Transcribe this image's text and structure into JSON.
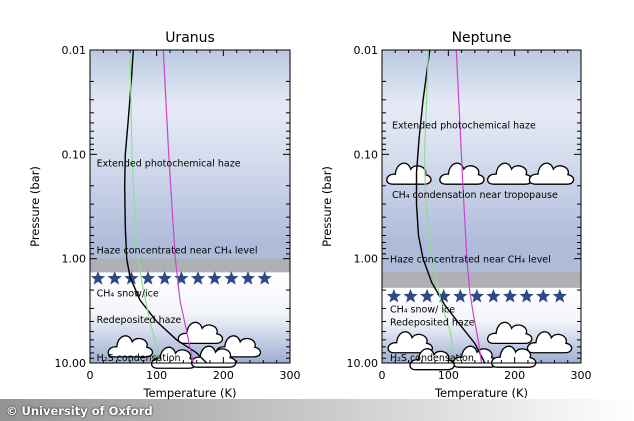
{
  "credit": "© University of Oxford",
  "chart_data": [
    {
      "type": "line",
      "title": "Uranus",
      "xlabel": "Temperature (K)",
      "ylabel": "Pressure (bar)",
      "xlim": [
        0,
        300
      ],
      "ylim": [
        0.01,
        10.0
      ],
      "y_scale": "log",
      "y_inverted": true,
      "xticks": [
        "0",
        "100",
        "200",
        "300"
      ],
      "yticks": [
        "0.01",
        "0.10",
        "1.00",
        "10.00"
      ],
      "series": [
        {
          "color": "#000000",
          "points": [
            [
              65,
              0.01
            ],
            [
              62,
              0.02
            ],
            [
              57,
              0.05
            ],
            [
              53,
              0.1
            ],
            [
              52,
              0.2
            ],
            [
              53,
              0.5
            ],
            [
              55,
              1.0
            ],
            [
              60,
              1.5
            ],
            [
              75,
              2.5
            ],
            [
              100,
              4
            ],
            [
              130,
              6
            ],
            [
              160,
              8
            ],
            [
              175,
              10
            ]
          ]
        },
        {
          "color": "#8ee08e",
          "points": [
            [
              60,
              0.01
            ],
            [
              63,
              0.1
            ],
            [
              68,
              0.5
            ],
            [
              72,
              1.0
            ],
            [
              80,
              2.0
            ],
            [
              90,
              4
            ],
            [
              100,
              7
            ],
            [
              105,
              10
            ]
          ]
        },
        {
          "color": "#cc44cc",
          "points": [
            [
              110,
              0.01
            ],
            [
              118,
              0.1
            ],
            [
              125,
              0.5
            ],
            [
              128,
              1.0
            ],
            [
              135,
              2.5
            ],
            [
              145,
              5
            ],
            [
              155,
              10
            ]
          ]
        }
      ],
      "annotations": [
        {
          "text": "Extended photochemical haze",
          "pressure": 0.12,
          "x": 10
        },
        {
          "text": "Haze concentrated near CH₄ level",
          "pressure": 0.82,
          "x": 10
        },
        {
          "text": "CH₄ snow/ice",
          "pressure": 2.1,
          "x": 10
        },
        {
          "text": "Redeposited haze",
          "pressure": 3.8,
          "x": 10
        },
        {
          "text": "H₂S condensation",
          "pressure": 8.8,
          "x": 10
        }
      ],
      "bands": {
        "haze_band": [
          1.0,
          1.35
        ],
        "snow_pressure": 1.55
      },
      "snow_x": [
        12,
        37,
        62,
        87,
        112,
        137,
        162,
        187,
        212,
        237,
        262
      ],
      "clouds": [
        {
          "x": 60,
          "p": 7.0
        },
        {
          "x": 165,
          "p": 5.2
        },
        {
          "x": 222,
          "p": 7.0
        },
        {
          "x": 125,
          "p": 9.0
        },
        {
          "x": 185,
          "p": 8.8
        }
      ]
    },
    {
      "type": "line",
      "title": "Neptune",
      "xlabel": "Temperature (K)",
      "ylabel": "Pressure (bar)",
      "xlim": [
        0,
        300
      ],
      "ylim": [
        0.01,
        10.0
      ],
      "y_scale": "log",
      "y_inverted": true,
      "xticks": [
        "0",
        "100",
        "200",
        "300"
      ],
      "yticks": [
        "0.01",
        "0.10",
        "1.00",
        "10.00"
      ],
      "series": [
        {
          "color": "#000000",
          "points": [
            [
              72,
              0.01
            ],
            [
              62,
              0.03
            ],
            [
              56,
              0.07
            ],
            [
              52,
              0.15
            ],
            [
              52,
              0.3
            ],
            [
              55,
              0.6
            ],
            [
              62,
              1.0
            ],
            [
              75,
              1.7
            ],
            [
              95,
              2.8
            ],
            [
              120,
              4.5
            ],
            [
              140,
              6.5
            ],
            [
              155,
              10
            ]
          ]
        },
        {
          "color": "#8ee08e",
          "points": [
            [
              70,
              0.01
            ],
            [
              66,
              0.05
            ],
            [
              64,
              0.1
            ],
            [
              66,
              0.3
            ],
            [
              72,
              0.7
            ],
            [
              78,
              1.2
            ],
            [
              85,
              2.0
            ],
            [
              95,
              3.5
            ],
            [
              103,
              5
            ],
            [
              110,
              10
            ]
          ]
        },
        {
          "color": "#cc44cc",
          "points": [
            [
              112,
              0.01
            ],
            [
              122,
              0.2
            ],
            [
              128,
              1.0
            ],
            [
              132,
              2.0
            ],
            [
              138,
              3.5
            ],
            [
              145,
              6
            ],
            [
              150,
              10
            ]
          ]
        }
      ],
      "annotations": [
        {
          "text": "Extended photochemical haze",
          "pressure": 0.052,
          "x": 15
        },
        {
          "text": "CH₄ condensation near tropopause",
          "pressure": 0.24,
          "x": 15
        },
        {
          "text": "Haze concentrated near CH₄ level",
          "pressure": 1.0,
          "x": 12
        },
        {
          "text": "CH₄ snow/ ice",
          "pressure": 3.0,
          "x": 12
        },
        {
          "text": "Redeposited haze",
          "pressure": 4.0,
          "x": 12
        },
        {
          "text": "H₂S condensation",
          "pressure": 8.8,
          "x": 12
        }
      ],
      "bands": {
        "haze_band": [
          1.35,
          1.9
        ],
        "snow_pressure": 2.3
      },
      "snow_x": [
        18,
        43,
        68,
        93,
        118,
        143,
        168,
        193,
        218,
        243,
        268
      ],
      "clouds": [
        {
          "x": 40,
          "p": 0.155
        },
        {
          "x": 120,
          "p": 0.155
        },
        {
          "x": 192,
          "p": 0.155
        },
        {
          "x": 255,
          "p": 0.155
        },
        {
          "x": 42,
          "p": 6.4
        },
        {
          "x": 192,
          "p": 5.2
        },
        {
          "x": 252,
          "p": 6.4
        },
        {
          "x": 140,
          "p": 8.8
        },
        {
          "x": 198,
          "p": 8.8
        },
        {
          "x": 75,
          "p": 9.3
        }
      ]
    }
  ]
}
